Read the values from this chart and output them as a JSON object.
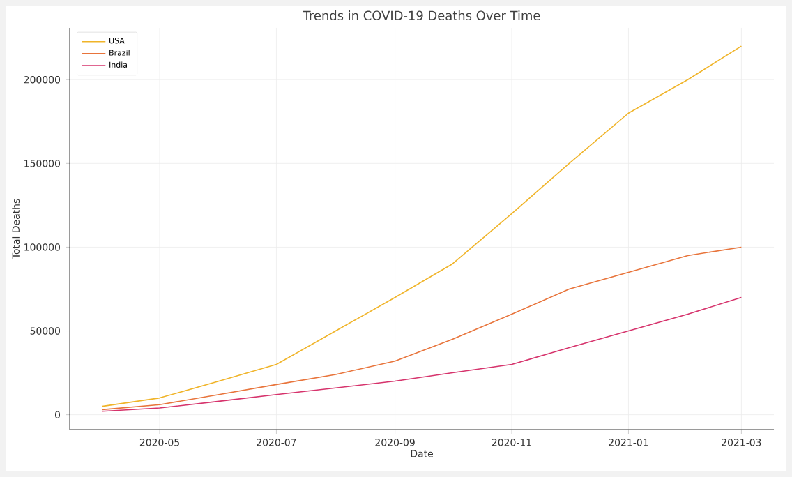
{
  "chart_data": {
    "type": "line",
    "title": "Trends in COVID-19 Deaths Over Time",
    "xlabel": "Date",
    "ylabel": "Total Deaths",
    "x": [
      "2020-04",
      "2020-05",
      "2020-06",
      "2020-07",
      "2020-08",
      "2020-09",
      "2020-10",
      "2020-11",
      "2020-12",
      "2021-01",
      "2021-02",
      "2021-03"
    ],
    "series": [
      {
        "name": "USA",
        "color": "#f0b429",
        "values": [
          5000,
          10000,
          20000,
          30000,
          50000,
          70000,
          90000,
          120000,
          150000,
          180000,
          200000,
          220000
        ]
      },
      {
        "name": "Brazil",
        "color": "#e8743b",
        "values": [
          3000,
          6000,
          12000,
          18000,
          24000,
          32000,
          45000,
          60000,
          75000,
          85000,
          95000,
          100000
        ]
      },
      {
        "name": "India",
        "color": "#d6336c",
        "values": [
          2000,
          4000,
          8000,
          12000,
          16000,
          20000,
          25000,
          30000,
          40000,
          50000,
          60000,
          70000
        ]
      }
    ],
    "xlim": [
      "2020-03-15",
      "2021-03-18"
    ],
    "xticks": [
      "2020-05",
      "2020-07",
      "2020-09",
      "2020-11",
      "2021-01",
      "2021-03"
    ],
    "ylim": [
      -8900,
      230900
    ],
    "yticks": [
      0,
      50000,
      100000,
      150000,
      200000
    ],
    "grid": true,
    "legend": "top left",
    "marker": "none",
    "line_style": "solid"
  }
}
